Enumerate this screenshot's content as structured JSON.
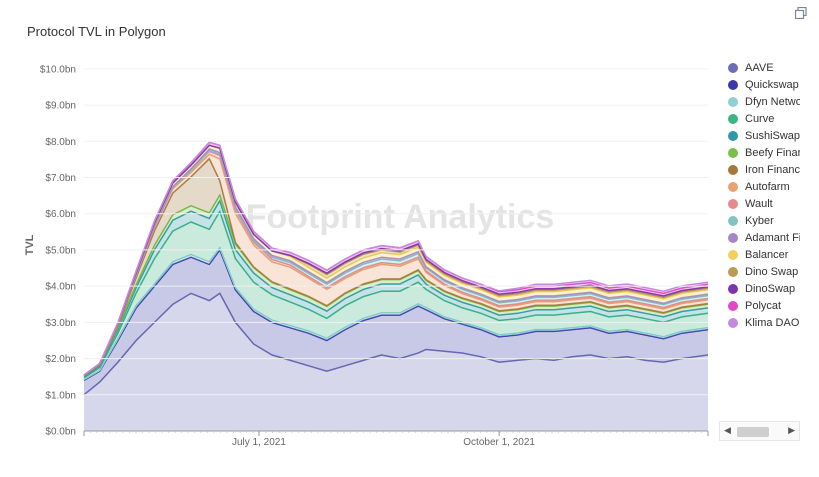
{
  "chart_data": {
    "type": "area",
    "title": "Protocol TVL in Polygon",
    "ylabel": "TVL",
    "xlabel": "",
    "ylim": [
      0,
      10.3
    ],
    "yticks": [
      "$0.0bn",
      "$1.0bn",
      "$2.0bn",
      "$3.0bn",
      "$4.0bn",
      "$5.0bn",
      "$6.0bn",
      "$7.0bn",
      "$8.0bn",
      "$9.0bn",
      "$10.0bn"
    ],
    "ytick_values": [
      0,
      1,
      2,
      3,
      4,
      5,
      6,
      7,
      8,
      9,
      10
    ],
    "xlim": [
      "2021-04-25",
      "2021-12-20"
    ],
    "xticks": [
      {
        "date": "2021-07-01",
        "label": "July 1, 2021"
      },
      {
        "date": "2021-10-01",
        "label": "October 1, 2021"
      }
    ],
    "stacked": true,
    "legend_position": "right",
    "watermark": "Footprint Analytics",
    "x": [
      "2021-04-25",
      "2021-05-01",
      "2021-05-08",
      "2021-05-15",
      "2021-05-22",
      "2021-05-29",
      "2021-06-05",
      "2021-06-12",
      "2021-06-16",
      "2021-06-22",
      "2021-06-29",
      "2021-07-06",
      "2021-07-13",
      "2021-07-20",
      "2021-07-27",
      "2021-08-03",
      "2021-08-10",
      "2021-08-17",
      "2021-08-24",
      "2021-08-31",
      "2021-09-03",
      "2021-09-10",
      "2021-09-17",
      "2021-09-24",
      "2021-10-01",
      "2021-10-08",
      "2021-10-15",
      "2021-10-22",
      "2021-10-29",
      "2021-11-05",
      "2021-11-12",
      "2021-11-19",
      "2021-11-26",
      "2021-12-03",
      "2021-12-10",
      "2021-12-20"
    ],
    "series": [
      {
        "name": "AAVE",
        "color": "#6e6eb6",
        "values": [
          1.0,
          1.35,
          1.9,
          2.5,
          3.0,
          3.5,
          3.8,
          3.6,
          3.8,
          3.0,
          2.4,
          2.1,
          1.95,
          1.8,
          1.65,
          1.8,
          1.95,
          2.1,
          2.0,
          2.15,
          2.25,
          2.2,
          2.15,
          2.05,
          1.9,
          1.95,
          2.0,
          1.95,
          2.05,
          2.1,
          2.0,
          2.05,
          1.95,
          1.9,
          2.0,
          2.1
        ]
      },
      {
        "name": "Quickswap",
        "color": "#3a3aa8",
        "values": [
          0.4,
          0.3,
          0.6,
          0.9,
          1.0,
          1.1,
          1.0,
          1.0,
          1.2,
          0.9,
          0.9,
          0.9,
          0.9,
          0.9,
          0.85,
          1.0,
          1.1,
          1.1,
          1.2,
          1.3,
          1.1,
          0.9,
          0.8,
          0.75,
          0.7,
          0.7,
          0.75,
          0.8,
          0.75,
          0.75,
          0.7,
          0.7,
          0.7,
          0.65,
          0.7,
          0.7
        ]
      },
      {
        "name": "Dfyn Network",
        "color": "#8fd0d6",
        "values": [
          0.02,
          0.02,
          0.05,
          0.06,
          0.06,
          0.07,
          0.07,
          0.07,
          0.06,
          0.06,
          0.06,
          0.06,
          0.06,
          0.06,
          0.06,
          0.06,
          0.06,
          0.06,
          0.06,
          0.06,
          0.06,
          0.05,
          0.05,
          0.05,
          0.05,
          0.05,
          0.05,
          0.05,
          0.05,
          0.05,
          0.05,
          0.05,
          0.05,
          0.05,
          0.05,
          0.05
        ]
      },
      {
        "name": "Curve",
        "color": "#3cb483",
        "values": [
          0.05,
          0.08,
          0.15,
          0.35,
          0.7,
          0.85,
          0.9,
          0.9,
          1.0,
          0.8,
          0.75,
          0.7,
          0.65,
          0.6,
          0.55,
          0.6,
          0.6,
          0.6,
          0.6,
          0.6,
          0.5,
          0.45,
          0.4,
          0.4,
          0.4,
          0.4,
          0.4,
          0.4,
          0.4,
          0.4,
          0.4,
          0.4,
          0.4,
          0.4,
          0.4,
          0.4
        ]
      },
      {
        "name": "SushiSwap",
        "color": "#2f99aa",
        "values": [
          0.03,
          0.05,
          0.1,
          0.15,
          0.25,
          0.3,
          0.3,
          0.3,
          0.3,
          0.25,
          0.25,
          0.2,
          0.2,
          0.2,
          0.2,
          0.2,
          0.2,
          0.2,
          0.2,
          0.2,
          0.15,
          0.15,
          0.15,
          0.15,
          0.15,
          0.15,
          0.15,
          0.15,
          0.15,
          0.15,
          0.15,
          0.15,
          0.15,
          0.15,
          0.15,
          0.15
        ]
      },
      {
        "name": "Beefy Finance",
        "color": "#77c04a",
        "values": [
          0.02,
          0.03,
          0.05,
          0.08,
          0.12,
          0.15,
          0.15,
          0.15,
          0.15,
          0.15,
          0.15,
          0.14,
          0.14,
          0.14,
          0.13,
          0.13,
          0.13,
          0.12,
          0.12,
          0.12,
          0.1,
          0.1,
          0.1,
          0.1,
          0.1,
          0.1,
          0.1,
          0.1,
          0.1,
          0.1,
          0.1,
          0.1,
          0.1,
          0.1,
          0.1,
          0.1
        ]
      },
      {
        "name": "Iron Finance",
        "color": "#a3793d",
        "values": [
          0.0,
          0.0,
          0.05,
          0.2,
          0.4,
          0.6,
          0.8,
          1.5,
          0.4,
          0.05,
          0.02,
          0.02,
          0.02,
          0.02,
          0.02,
          0.02,
          0.02,
          0.02,
          0.02,
          0.02,
          0.02,
          0.02,
          0.02,
          0.02,
          0.02,
          0.02,
          0.02,
          0.02,
          0.02,
          0.02,
          0.02,
          0.02,
          0.02,
          0.02,
          0.02,
          0.02
        ]
      },
      {
        "name": "Autofarm",
        "color": "#e9a271",
        "values": [
          0.02,
          0.03,
          0.05,
          0.07,
          0.1,
          0.12,
          0.12,
          0.12,
          0.6,
          0.8,
          0.6,
          0.55,
          0.6,
          0.5,
          0.45,
          0.4,
          0.4,
          0.4,
          0.35,
          0.3,
          0.2,
          0.15,
          0.12,
          0.1,
          0.1,
          0.1,
          0.1,
          0.1,
          0.1,
          0.1,
          0.1,
          0.1,
          0.1,
          0.1,
          0.1,
          0.1
        ]
      },
      {
        "name": "Wault",
        "color": "#e8888c",
        "values": [
          0.0,
          0.0,
          0.0,
          0.01,
          0.02,
          0.03,
          0.05,
          0.08,
          0.1,
          0.1,
          0.08,
          0.07,
          0.06,
          0.05,
          0.05,
          0.05,
          0.05,
          0.05,
          0.05,
          0.05,
          0.04,
          0.04,
          0.04,
          0.04,
          0.04,
          0.04,
          0.04,
          0.04,
          0.04,
          0.04,
          0.04,
          0.04,
          0.04,
          0.04,
          0.04,
          0.04
        ]
      },
      {
        "name": "Kyber",
        "color": "#82c3c2",
        "values": [
          0.0,
          0.0,
          0.0,
          0.0,
          0.0,
          0.0,
          0.01,
          0.02,
          0.03,
          0.04,
          0.05,
          0.06,
          0.07,
          0.08,
          0.09,
          0.1,
          0.1,
          0.1,
          0.1,
          0.1,
          0.08,
          0.08,
          0.08,
          0.08,
          0.08,
          0.08,
          0.08,
          0.08,
          0.08,
          0.08,
          0.08,
          0.08,
          0.08,
          0.08,
          0.08,
          0.08
        ]
      },
      {
        "name": "Adamant Finance",
        "color": "#a586c6",
        "values": [
          0.0,
          0.0,
          0.0,
          0.01,
          0.02,
          0.03,
          0.04,
          0.05,
          0.05,
          0.05,
          0.05,
          0.05,
          0.05,
          0.05,
          0.05,
          0.05,
          0.05,
          0.05,
          0.05,
          0.05,
          0.04,
          0.04,
          0.04,
          0.04,
          0.04,
          0.04,
          0.04,
          0.04,
          0.04,
          0.04,
          0.04,
          0.04,
          0.04,
          0.04,
          0.04,
          0.04
        ]
      },
      {
        "name": "Balancer",
        "color": "#f2cf5b",
        "values": [
          0.0,
          0.0,
          0.02,
          0.05,
          0.08,
          0.1,
          0.1,
          0.1,
          0.12,
          0.12,
          0.12,
          0.12,
          0.12,
          0.12,
          0.12,
          0.12,
          0.12,
          0.12,
          0.12,
          0.12,
          0.12,
          0.12,
          0.12,
          0.12,
          0.12,
          0.12,
          0.12,
          0.12,
          0.12,
          0.12,
          0.12,
          0.12,
          0.12,
          0.12,
          0.12,
          0.12
        ]
      },
      {
        "name": "Dino Swap",
        "color": "#bb9b50",
        "values": [
          0.0,
          0.0,
          0.0,
          0.0,
          0.0,
          0.0,
          0.0,
          0.0,
          0.0,
          0.0,
          0.0,
          0.0,
          0.02,
          0.08,
          0.1,
          0.1,
          0.1,
          0.08,
          0.07,
          0.06,
          0.04,
          0.04,
          0.04,
          0.04,
          0.04,
          0.04,
          0.04,
          0.04,
          0.04,
          0.04,
          0.04,
          0.04,
          0.04,
          0.04,
          0.04,
          0.04
        ]
      },
      {
        "name": "DinoSwap",
        "color": "#7b36ad",
        "values": [
          0.0,
          0.0,
          0.0,
          0.0,
          0.0,
          0.0,
          0.0,
          0.0,
          0.0,
          0.0,
          0.0,
          0.0,
          0.01,
          0.03,
          0.04,
          0.04,
          0.04,
          0.04,
          0.04,
          0.04,
          0.04,
          0.04,
          0.04,
          0.04,
          0.04,
          0.04,
          0.04,
          0.04,
          0.04,
          0.04,
          0.04,
          0.04,
          0.04,
          0.04,
          0.04,
          0.04
        ]
      },
      {
        "name": "Polycat",
        "color": "#e548c4",
        "values": [
          0.0,
          0.0,
          0.02,
          0.04,
          0.05,
          0.06,
          0.07,
          0.08,
          0.08,
          0.08,
          0.08,
          0.08,
          0.08,
          0.08,
          0.08,
          0.08,
          0.08,
          0.08,
          0.08,
          0.08,
          0.08,
          0.07,
          0.07,
          0.07,
          0.07,
          0.07,
          0.07,
          0.07,
          0.07,
          0.07,
          0.07,
          0.07,
          0.07,
          0.07,
          0.07,
          0.07
        ]
      },
      {
        "name": "Klima DAO",
        "color": "#c48ae0",
        "values": [
          0.0,
          0.0,
          0.0,
          0.0,
          0.0,
          0.0,
          0.0,
          0.0,
          0.0,
          0.0,
          0.0,
          0.0,
          0.0,
          0.0,
          0.0,
          0.0,
          0.0,
          0.0,
          0.0,
          0.0,
          0.0,
          0.0,
          0.0,
          0.0,
          0.02,
          0.04,
          0.05,
          0.05,
          0.06,
          0.06,
          0.06,
          0.06,
          0.06,
          0.06,
          0.06,
          0.06
        ]
      }
    ]
  },
  "legend_items": [
    "AAVE",
    "Quickswap",
    "Dfyn Network",
    "Curve",
    "SushiSwap",
    "Beefy Finance",
    "Iron Finance",
    "Autofarm",
    "Wault",
    "Kyber",
    "Adamant Finance",
    "Balancer",
    "Dino Swap",
    "DinoSwap",
    "Polycat",
    "Klima DAO"
  ],
  "colors": {
    "axis": "#999999",
    "label": "#666666",
    "watermark": "#e4e4e4"
  },
  "icons": {
    "menu": "fullscreen-icon",
    "scroll_left": "arrow-left-icon",
    "scroll_right": "arrow-right-icon"
  }
}
